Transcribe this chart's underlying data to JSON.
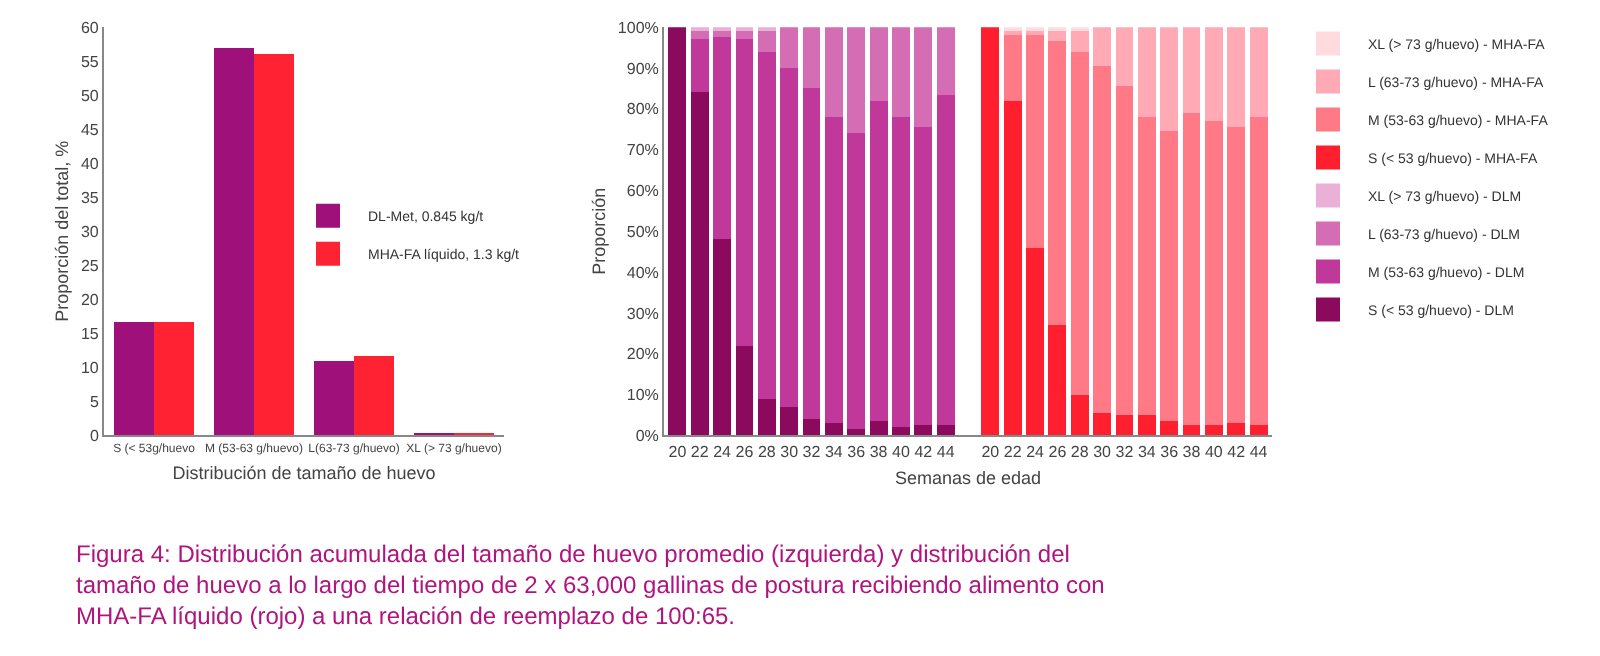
{
  "chart_data": [
    {
      "type": "bar",
      "xlabel": "Distribución de tamaño de huevo",
      "ylabel": "Proporción del total, %",
      "categories": [
        "S (< 53g/huevo",
        "M (53-63 g/huevo)",
        "L(63-73 g/huevo)",
        "XL (> 73 g/huevo)"
      ],
      "series": [
        {
          "name": "DL-Met, 0.845 kg/t",
          "color": "#a0107a",
          "values": [
            16.7,
            57,
            11,
            0.3
          ]
        },
        {
          "name": "MHA-FA líquido, 1.3 kg/t",
          "color": "#ff2233",
          "values": [
            16.7,
            56,
            11.7,
            0.4
          ]
        }
      ],
      "ylim": [
        0,
        60
      ],
      "yticks": [
        0,
        5,
        10,
        15,
        20,
        25,
        30,
        35,
        40,
        45,
        50,
        55,
        60
      ],
      "grid": false,
      "legend": "right",
      "annotations": [
        "Figura 4: Distribución acumulada del tamaño de huevo promedio (izquierda) y distribución del tamaño de huevo a lo largo del tiempo de 2 x 63,000 gallinas de postura recibiendo alimento con MHA-FA líquido (rojo) a una relación de reemplazo de 100:65."
      ]
    },
    {
      "type": "bar",
      "stacked": true,
      "xlabel": "Semanas de edad",
      "ylabel": "Proporción",
      "categories": [
        "20",
        "22",
        "24",
        "26",
        "28",
        "30",
        "32",
        "34",
        "36",
        "38",
        "40",
        "42",
        "44",
        null,
        "20",
        "22",
        "24",
        "26",
        "28",
        "30",
        "32",
        "34",
        "36",
        "38",
        "40",
        "42",
        "44"
      ],
      "series": [
        {
          "name": "S (< 53 g/huevo) - DLM",
          "color": "#8b0a5e",
          "values": [
            100,
            84,
            48,
            22,
            9,
            7,
            4,
            3,
            1.5,
            3.5,
            2,
            2.5,
            2.5,
            null,
            null,
            null,
            null,
            null,
            null,
            null,
            null,
            null,
            null,
            null,
            null,
            null,
            null
          ]
        },
        {
          "name": "M (53-63 g/huevo) - DLM",
          "color": "#c0399a",
          "values": [
            0,
            13,
            49.5,
            75,
            85,
            83,
            81,
            75,
            72.5,
            78.5,
            76,
            73,
            81,
            null,
            null,
            null,
            null,
            null,
            null,
            null,
            null,
            null,
            null,
            null,
            null,
            null,
            null
          ]
        },
        {
          "name": "L (63-73 g/huevo) - DLM",
          "color": "#d46db4",
          "values": [
            0,
            2,
            1.5,
            2,
            5.5,
            10,
            15,
            22,
            26,
            18,
            22,
            24.5,
            16.5,
            null,
            null,
            null,
            null,
            null,
            null,
            null,
            null,
            null,
            null,
            null,
            null,
            null,
            null
          ]
        },
        {
          "name": "XL (> 73 g/huevo) - DLM",
          "color": "#eab0d8",
          "values": [
            0,
            1,
            1,
            1,
            0.5,
            0,
            0,
            0,
            0,
            0,
            0,
            0,
            0,
            null,
            null,
            null,
            null,
            null,
            null,
            null,
            null,
            null,
            null,
            null,
            null,
            null,
            null
          ]
        },
        {
          "name": "S (< 53 g/huevo) - MHA-FA",
          "color": "#ff1f2e",
          "values": [
            null,
            null,
            null,
            null,
            null,
            null,
            null,
            null,
            null,
            null,
            null,
            null,
            null,
            null,
            100,
            82,
            46,
            27,
            10,
            5.5,
            5,
            5,
            3.5,
            2.5,
            2.5,
            3,
            2.5
          ]
        },
        {
          "name": "M (53-63 g/huevo) - MHA-FA",
          "color": "#ff7a86",
          "values": [
            null,
            null,
            null,
            null,
            null,
            null,
            null,
            null,
            null,
            null,
            null,
            null,
            null,
            null,
            0,
            16,
            52,
            69.5,
            84,
            85,
            80.5,
            73,
            71,
            76.5,
            74.5,
            72.5,
            75.5
          ]
        },
        {
          "name": "L (63-73 g/huevo) - MHA-FA",
          "color": "#ffaab4",
          "values": [
            null,
            null,
            null,
            null,
            null,
            null,
            null,
            null,
            null,
            null,
            null,
            null,
            null,
            null,
            0,
            1.5,
            1,
            2.5,
            5.5,
            9.5,
            14.5,
            22,
            25.5,
            21,
            23,
            24.5,
            22
          ]
        },
        {
          "name": "XL (> 73 g/huevo) - MHA-FA",
          "color": "#ffdbe0",
          "values": [
            null,
            null,
            null,
            null,
            null,
            null,
            null,
            null,
            null,
            null,
            null,
            null,
            null,
            null,
            0,
            0.5,
            1,
            1,
            0.5,
            0,
            0,
            0,
            0,
            0,
            0,
            0,
            0
          ]
        }
      ],
      "ylim": [
        0,
        100
      ],
      "yticks": [
        {
          "value": 0,
          "label": "0%"
        },
        {
          "value": 10,
          "label": "10%"
        },
        {
          "value": 20,
          "label": "20%"
        },
        {
          "value": 30,
          "label": "30%"
        },
        {
          "value": 40,
          "label": "40%"
        },
        {
          "value": 50,
          "label": "50%"
        },
        {
          "value": 60,
          "label": "60%"
        },
        {
          "value": 70,
          "label": "70%"
        },
        {
          "value": 80,
          "label": "80%"
        },
        {
          "value": 90,
          "label": "90%"
        },
        {
          "value": 100,
          "label": "100%"
        }
      ],
      "grid": false,
      "legend": "right"
    }
  ]
}
